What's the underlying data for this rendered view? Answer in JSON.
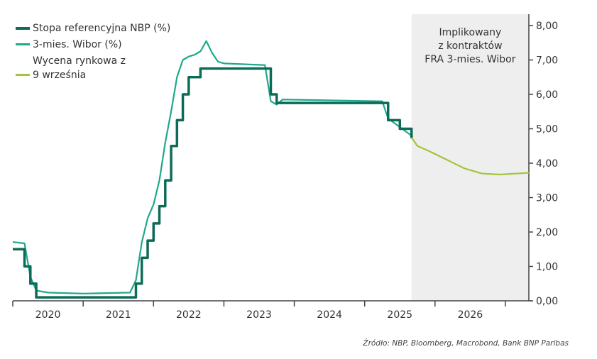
{
  "chart_data": {
    "type": "line",
    "title": "",
    "xlabel": "",
    "ylabel": "",
    "x_range": [
      "2020-01",
      "2027-05"
    ],
    "ylim": [
      0,
      8
    ],
    "y_ticks": [
      "0,00",
      "1,00",
      "2,00",
      "3,00",
      "4,00",
      "5,00",
      "6,00",
      "7,00",
      "8,00"
    ],
    "x_tick_labels": [
      "2020",
      "2021",
      "2022",
      "2023",
      "2024",
      "2025",
      "2026"
    ],
    "y_axis_side": "right",
    "grid": false,
    "legend_placement": "top-left",
    "shaded_region": {
      "from": "2025-09",
      "to": "2027-05",
      "label": "Implikowany\nz kontraktów\nFRA 3-mies. Wibor",
      "color": "#eeeeee"
    },
    "series": [
      {
        "name": "Stopa referencyjna NBP (%)",
        "color": "#0d6b57",
        "step": true,
        "points": [
          [
            "2020-01",
            1.5
          ],
          [
            "2020-03",
            1.0
          ],
          [
            "2020-04",
            0.5
          ],
          [
            "2020-05",
            0.1
          ],
          [
            "2021-10",
            0.5
          ],
          [
            "2021-11",
            1.25
          ],
          [
            "2021-12",
            1.75
          ],
          [
            "2022-01",
            2.25
          ],
          [
            "2022-02",
            2.75
          ],
          [
            "2022-03",
            3.5
          ],
          [
            "2022-04",
            4.5
          ],
          [
            "2022-05",
            5.25
          ],
          [
            "2022-06",
            6.0
          ],
          [
            "2022-07",
            6.5
          ],
          [
            "2022-09",
            6.75
          ],
          [
            "2023-09",
            6.0
          ],
          [
            "2023-10",
            5.75
          ],
          [
            "2025-05",
            5.25
          ],
          [
            "2025-07",
            5.0
          ],
          [
            "2025-09",
            4.75
          ]
        ]
      },
      {
        "name": "3-mies. Wibor (%)",
        "color": "#1fa88a",
        "step": false,
        "points": [
          [
            "2020-01",
            1.71
          ],
          [
            "2020-03",
            1.67
          ],
          [
            "2020-04",
            0.7
          ],
          [
            "2020-05",
            0.3
          ],
          [
            "2020-07",
            0.24
          ],
          [
            "2021-01",
            0.21
          ],
          [
            "2021-09",
            0.24
          ],
          [
            "2021-10",
            0.6
          ],
          [
            "2021-11",
            1.7
          ],
          [
            "2021-12",
            2.4
          ],
          [
            "2022-01",
            2.8
          ],
          [
            "2022-02",
            3.5
          ],
          [
            "2022-03",
            4.6
          ],
          [
            "2022-04",
            5.5
          ],
          [
            "2022-05",
            6.5
          ],
          [
            "2022-06",
            7.0
          ],
          [
            "2022-07",
            7.1
          ],
          [
            "2022-08",
            7.15
          ],
          [
            "2022-09",
            7.25
          ],
          [
            "2022-10",
            7.55
          ],
          [
            "2022-11",
            7.2
          ],
          [
            "2022-12",
            6.95
          ],
          [
            "2023-01",
            6.9
          ],
          [
            "2023-08",
            6.85
          ],
          [
            "2023-09",
            5.8
          ],
          [
            "2023-10",
            5.7
          ],
          [
            "2023-11",
            5.85
          ],
          [
            "2025-04",
            5.8
          ],
          [
            "2025-05",
            5.3
          ],
          [
            "2025-07",
            5.05
          ],
          [
            "2025-09",
            4.8
          ]
        ]
      },
      {
        "name": "Wycena rynkowa z\n9 września",
        "color": "#a3c43b",
        "step": false,
        "points": [
          [
            "2025-09",
            4.75
          ],
          [
            "2025-10",
            4.5
          ],
          [
            "2025-12",
            4.35
          ],
          [
            "2026-03",
            4.1
          ],
          [
            "2026-06",
            3.85
          ],
          [
            "2026-09",
            3.7
          ],
          [
            "2026-12",
            3.67
          ],
          [
            "2027-05",
            3.72
          ]
        ]
      }
    ],
    "source": "Źródło: NBP, Bloomberg, Macrobond, Bank BNP Paribas"
  }
}
